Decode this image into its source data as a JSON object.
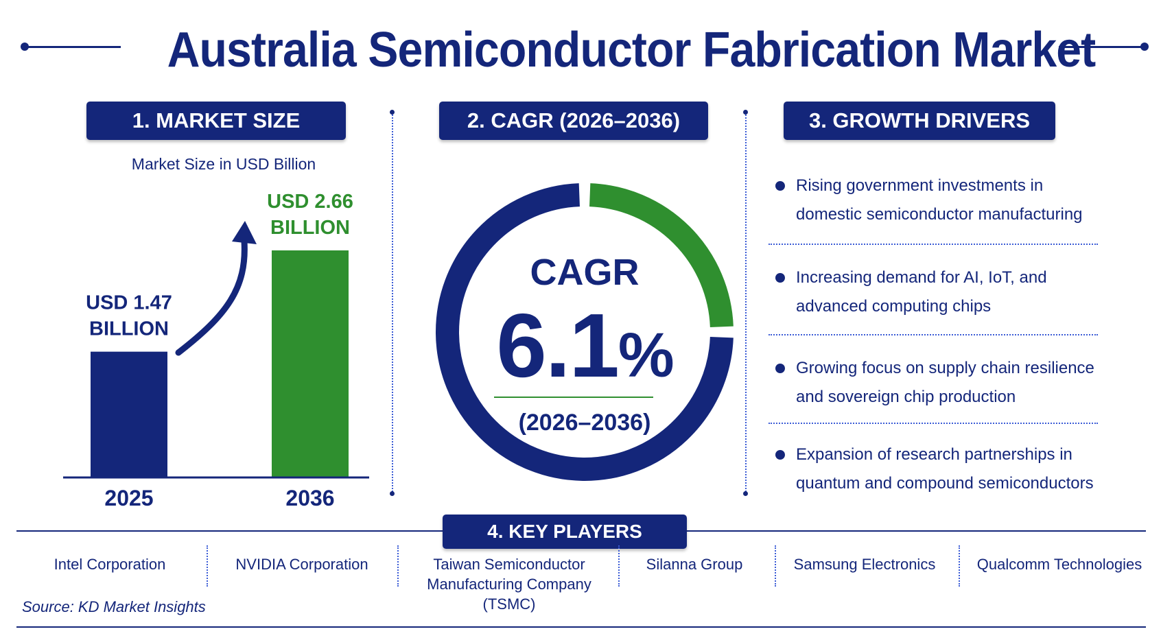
{
  "title": "Australia Semiconductor Fabrication Market",
  "colors": {
    "navy": "#14267a",
    "green": "#2f8f2f",
    "white": "#ffffff"
  },
  "sections": {
    "market_size": "1. MARKET SIZE",
    "cagr": "2. CAGR (2026–2036)",
    "growth_drivers": "3. GROWTH DRIVERS",
    "key_players": "4. KEY PLAYERS"
  },
  "chart_data": [
    {
      "type": "bar",
      "subtitle": "Market Size in USD Billion",
      "categories": [
        "2025",
        "2036"
      ],
      "values": [
        1.47,
        2.66
      ],
      "value_labels": [
        "USD 1.47 BILLION",
        "USD 2.66 BILLION"
      ],
      "bar_colors": [
        "#14267a",
        "#2f8f2f"
      ],
      "ylim": [
        0,
        2.66
      ],
      "annotations": [
        "growth-arrow"
      ]
    },
    {
      "type": "pie",
      "variant": "donut",
      "label": "CAGR",
      "value": 6.1,
      "value_text": "6.1",
      "unit": "%",
      "period": "(2026–2036)",
      "segments": [
        {
          "value": 25,
          "color": "#2f8f2f"
        },
        {
          "value": 75,
          "color": "#14267a"
        }
      ]
    }
  ],
  "growth_drivers": [
    {
      "line1": "Rising government investments in",
      "line2": "domestic semiconductor manufacturing"
    },
    {
      "line1": "Increasing demand for AI, IoT, and",
      "line2": "advanced computing chips"
    },
    {
      "line1": "Growing focus on supply chain resilience",
      "line2": "and sovereign chip production"
    },
    {
      "line1": "Expansion of research partnerships in",
      "line2": "quantum and compound semiconductors"
    }
  ],
  "key_players": [
    {
      "line1": "Intel Corporation",
      "line2": ""
    },
    {
      "line1": "NVIDIA Corporation",
      "line2": ""
    },
    {
      "line1": "Taiwan Semiconductor",
      "line2": "Manufacturing Company (TSMC)"
    },
    {
      "line1": "Silanna Group",
      "line2": ""
    },
    {
      "line1": "Samsung Electronics",
      "line2": ""
    },
    {
      "line1": "Qualcomm Technologies",
      "line2": ""
    }
  ],
  "source": "Source: KD Market Insights"
}
